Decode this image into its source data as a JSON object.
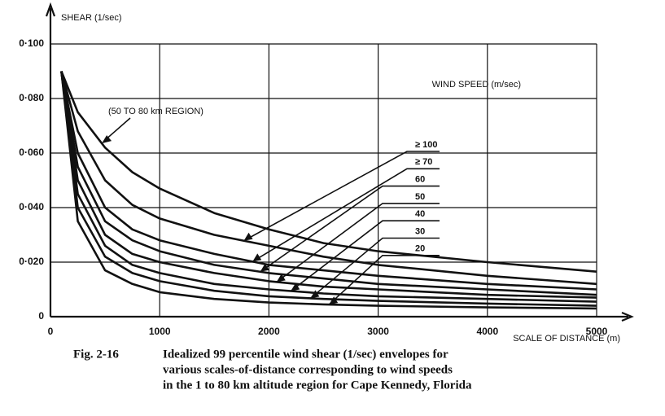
{
  "chart_data": {
    "type": "line",
    "y_label": "SHEAR (1/sec)",
    "x_label": "SCALE OF DISTANCE (m)",
    "legend_title": "WIND SPEED (m/sec)",
    "caption_number": "Fig. 2-16",
    "caption_lines": [
      "Idealized 99 percentile wind shear (1/sec) envelopes for",
      "various scales-of-distance corresponding to wind speeds",
      "in the 1 to 80 km altitude region for Cape Kennedy, Florida"
    ],
    "x": [
      100,
      250,
      500,
      750,
      1000,
      1500,
      2000,
      2500,
      3000,
      4000,
      5000
    ],
    "series": [
      {
        "name": "(50 TO 80 km REGION)",
        "color": "#111111",
        "values": [
          0.09,
          0.075,
          0.062,
          0.053,
          0.047,
          0.038,
          0.032,
          0.027,
          0.024,
          0.02,
          0.0165
        ]
      },
      {
        "name": "≥ 100",
        "color": "#111111",
        "values": [
          0.09,
          0.068,
          0.05,
          0.041,
          0.036,
          0.03,
          0.026,
          0.022,
          0.019,
          0.015,
          0.012
        ]
      },
      {
        "name": "≥ 70",
        "color": "#111111",
        "values": [
          0.09,
          0.06,
          0.04,
          0.032,
          0.028,
          0.023,
          0.019,
          0.017,
          0.015,
          0.012,
          0.01
        ]
      },
      {
        "name": "60",
        "color": "#111111",
        "values": [
          0.09,
          0.055,
          0.035,
          0.028,
          0.024,
          0.019,
          0.016,
          0.014,
          0.012,
          0.01,
          0.008
        ]
      },
      {
        "name": "50",
        "color": "#111111",
        "values": [
          0.09,
          0.05,
          0.03,
          0.023,
          0.02,
          0.016,
          0.013,
          0.011,
          0.01,
          0.008,
          0.007
        ]
      },
      {
        "name": "40",
        "color": "#111111",
        "values": [
          0.09,
          0.045,
          0.026,
          0.019,
          0.016,
          0.012,
          0.01,
          0.0085,
          0.0075,
          0.0065,
          0.0055
        ]
      },
      {
        "name": "30",
        "color": "#111111",
        "values": [
          0.09,
          0.04,
          0.022,
          0.016,
          0.013,
          0.0095,
          0.0075,
          0.0065,
          0.0058,
          0.0048,
          0.004
        ]
      },
      {
        "name": "20",
        "color": "#111111",
        "values": [
          0.09,
          0.035,
          0.017,
          0.012,
          0.009,
          0.0065,
          0.0052,
          0.0045,
          0.004,
          0.0034,
          0.003
        ]
      }
    ],
    "xlim": [
      0,
      5000
    ],
    "xticks": [
      0,
      1000,
      2000,
      3000,
      4000,
      5000
    ],
    "ylim": [
      0,
      0.1
    ],
    "yticks": [
      0,
      {
        "value": 0.02,
        "label": "0·020"
      },
      {
        "value": 0.04,
        "label": "0·040"
      },
      {
        "value": 0.06,
        "label": "0·060"
      },
      {
        "value": 0.08,
        "label": "0·080"
      },
      {
        "value": 0.1,
        "label": "0·100"
      }
    ],
    "grid": true
  }
}
